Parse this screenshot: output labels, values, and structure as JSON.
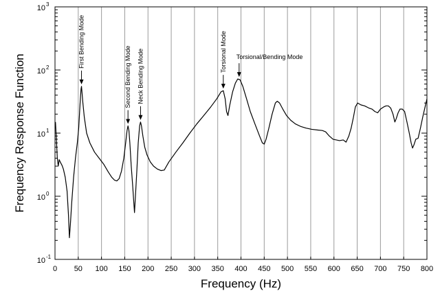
{
  "chart_data": {
    "type": "line",
    "title": "",
    "xlabel": "Frequency (Hz)",
    "ylabel": "Frequency Response Function",
    "xlim": [
      0,
      800
    ],
    "ylim": [
      0.1,
      1000
    ],
    "yscale": "log",
    "grid": "vertical",
    "x_ticks": [
      0,
      50,
      100,
      150,
      200,
      250,
      300,
      350,
      400,
      450,
      500,
      550,
      600,
      650,
      700,
      750,
      800
    ],
    "x_tick_labels": [
      "0",
      "50",
      "100",
      "150",
      "200",
      "250",
      "300",
      "350",
      "400",
      "450",
      "500",
      "550",
      "600",
      "650",
      "700",
      "750",
      "800"
    ],
    "y_ticks": [
      0.1,
      1,
      10,
      100,
      1000
    ],
    "y_tick_labels": [
      {
        "base": "10",
        "exp": "-1"
      },
      {
        "base": "10",
        "exp": "0"
      },
      {
        "base": "10",
        "exp": "1"
      },
      {
        "base": "10",
        "exp": "2"
      },
      {
        "base": "10",
        "exp": "3"
      }
    ],
    "series": [
      {
        "color": "#000000",
        "points": [
          [
            1,
            15
          ],
          [
            3,
            8
          ],
          [
            5,
            4
          ],
          [
            7,
            3
          ],
          [
            9,
            3.8
          ],
          [
            12,
            3.4
          ],
          [
            15,
            3.1
          ],
          [
            18,
            2.7
          ],
          [
            22,
            2.0
          ],
          [
            26,
            1.2
          ],
          [
            29,
            0.5
          ],
          [
            31,
            0.22
          ],
          [
            33,
            0.35
          ],
          [
            36,
            0.8
          ],
          [
            40,
            2
          ],
          [
            44,
            4
          ],
          [
            48,
            7
          ],
          [
            51,
            12
          ],
          [
            54,
            30
          ],
          [
            56,
            50
          ],
          [
            57,
            55
          ],
          [
            58,
            45
          ],
          [
            60,
            30
          ],
          [
            63,
            18
          ],
          [
            68,
            10
          ],
          [
            75,
            7
          ],
          [
            85,
            5
          ],
          [
            95,
            4
          ],
          [
            105,
            3.2
          ],
          [
            115,
            2.4
          ],
          [
            122,
            2.0
          ],
          [
            128,
            1.8
          ],
          [
            133,
            1.75
          ],
          [
            138,
            1.9
          ],
          [
            143,
            2.5
          ],
          [
            148,
            4
          ],
          [
            152,
            7
          ],
          [
            155,
            11
          ],
          [
            157,
            13
          ],
          [
            159,
            11
          ],
          [
            161,
            7
          ],
          [
            164,
            3
          ],
          [
            167,
            1.5
          ],
          [
            169,
            0.9
          ],
          [
            171,
            0.55
          ],
          [
            173,
            1
          ],
          [
            176,
            2.5
          ],
          [
            179,
            7
          ],
          [
            182,
            13
          ],
          [
            184,
            15
          ],
          [
            186,
            13
          ],
          [
            189,
            9
          ],
          [
            193,
            6
          ],
          [
            198,
            4.5
          ],
          [
            205,
            3.5
          ],
          [
            212,
            3.0
          ],
          [
            220,
            2.7
          ],
          [
            228,
            2.55
          ],
          [
            235,
            2.6
          ],
          [
            245,
            3.5
          ],
          [
            260,
            5
          ],
          [
            275,
            7
          ],
          [
            290,
            10
          ],
          [
            305,
            14
          ],
          [
            320,
            19
          ],
          [
            335,
            26
          ],
          [
            348,
            35
          ],
          [
            357,
            45
          ],
          [
            362,
            47
          ],
          [
            366,
            35
          ],
          [
            369,
            22
          ],
          [
            372,
            19
          ],
          [
            376,
            28
          ],
          [
            382,
            45
          ],
          [
            388,
            62
          ],
          [
            393,
            72
          ],
          [
            398,
            70
          ],
          [
            404,
            55
          ],
          [
            412,
            35
          ],
          [
            420,
            22
          ],
          [
            430,
            14
          ],
          [
            440,
            9
          ],
          [
            446,
            7
          ],
          [
            450,
            6.7
          ],
          [
            454,
            8
          ],
          [
            460,
            12
          ],
          [
            467,
            20
          ],
          [
            474,
            30
          ],
          [
            478,
            32
          ],
          [
            483,
            30
          ],
          [
            490,
            24
          ],
          [
            498,
            19
          ],
          [
            507,
            16
          ],
          [
            517,
            14
          ],
          [
            528,
            12.8
          ],
          [
            540,
            12
          ],
          [
            552,
            11.5
          ],
          [
            565,
            11.2
          ],
          [
            575,
            11.0
          ],
          [
            582,
            10.5
          ],
          [
            590,
            9
          ],
          [
            598,
            8
          ],
          [
            605,
            7.8
          ],
          [
            612,
            7.6
          ],
          [
            620,
            7.8
          ],
          [
            626,
            7.2
          ],
          [
            632,
            9
          ],
          [
            637,
            12
          ],
          [
            642,
            18
          ],
          [
            646,
            26
          ],
          [
            651,
            30
          ],
          [
            658,
            28
          ],
          [
            666,
            27
          ],
          [
            675,
            25
          ],
          [
            682,
            24
          ],
          [
            688,
            22
          ],
          [
            694,
            21
          ],
          [
            700,
            24
          ],
          [
            707,
            26
          ],
          [
            712,
            27
          ],
          [
            717,
            27
          ],
          [
            722,
            25
          ],
          [
            727,
            20
          ],
          [
            731,
            15
          ],
          [
            734,
            17
          ],
          [
            738,
            21
          ],
          [
            742,
            24
          ],
          [
            747,
            24
          ],
          [
            752,
            22
          ],
          [
            757,
            15
          ],
          [
            762,
            10
          ],
          [
            766,
            7
          ],
          [
            769,
            5.8
          ],
          [
            772,
            6.5
          ],
          [
            776,
            8
          ],
          [
            781,
            8.3
          ],
          [
            786,
            12
          ],
          [
            791,
            18
          ],
          [
            796,
            26
          ],
          [
            800,
            35
          ]
        ]
      }
    ],
    "annotations": [
      {
        "text": "First Bending Mode",
        "x": 57,
        "y": 55,
        "orientation": "vertical"
      },
      {
        "text": "Second Bending Mode",
        "x": 157,
        "y": 13,
        "orientation": "vertical"
      },
      {
        "text": "Neck Bending Mode",
        "x": 184,
        "y": 15,
        "orientation": "vertical"
      },
      {
        "text": "Torsional Mode",
        "x": 362,
        "y": 47,
        "orientation": "vertical"
      },
      {
        "text": "Torsional/Bending Mode",
        "x": 396,
        "y": 72,
        "orientation": "horizontal"
      }
    ]
  }
}
